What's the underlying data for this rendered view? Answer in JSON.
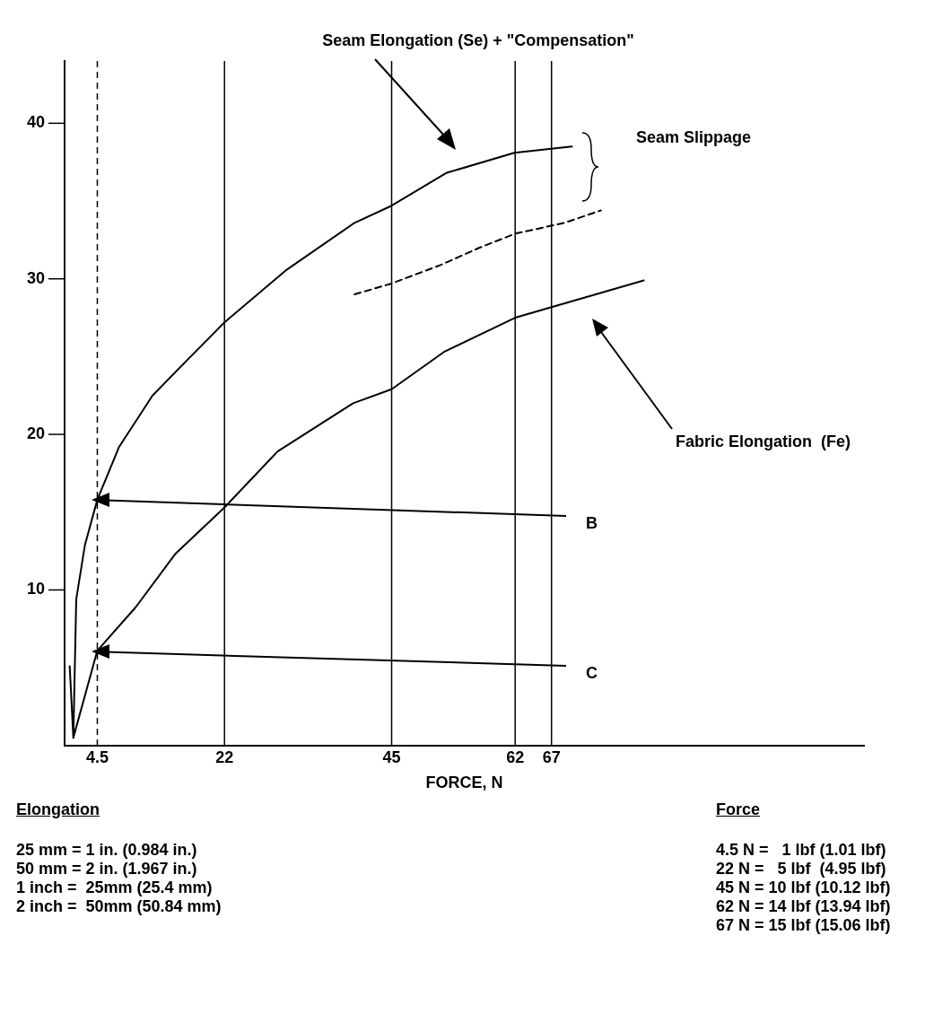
{
  "chart_data": {
    "type": "line",
    "xlabel": "FORCE, N",
    "xlim": [
      0,
      110
    ],
    "xticks": [
      4.5,
      22,
      45,
      62,
      67
    ],
    "ylim": [
      0,
      44
    ],
    "yticks": [
      10,
      20,
      30,
      40
    ],
    "grid": false,
    "legend": false,
    "marker": "none",
    "series": [
      {
        "color": "#000000",
        "x": [
          0.7,
          1.2,
          1.6,
          2.8,
          4.5,
          7.5,
          12.1,
          16.7,
          22,
          30.6,
          39.9,
          45,
          52.5,
          61.9,
          69.8
        ],
        "values": [
          5.1,
          0.5,
          9.4,
          12.9,
          15.8,
          19.2,
          22.5,
          24.7,
          27.2,
          30.6,
          33.6,
          34.7,
          36.8,
          38.1,
          38.5
        ]
      },
      {
        "color": "#000000",
        "x": [
          1.2,
          4.5,
          9.8,
          15.2,
          22,
          29.3,
          39.7,
          45,
          52.2,
          57.1,
          62,
          73.1,
          79.7
        ],
        "values": [
          0.5,
          6.1,
          8.9,
          12.3,
          15.3,
          18.9,
          22.0,
          22.9,
          25.3,
          26.4,
          27.5,
          29.0,
          29.9
        ]
      },
      {
        "color": "#000000",
        "line_style": "dashed",
        "x": [
          39.9,
          45,
          51.8,
          57.1,
          62,
          68.8,
          73.8
        ],
        "values": [
          29.0,
          29.7,
          30.9,
          32.0,
          32.9,
          33.6,
          34.4
        ]
      }
    ],
    "ref_lines": [
      {
        "axis": "x",
        "value": 4.5,
        "line_style": "dashed"
      },
      {
        "axis": "x",
        "value": 22
      },
      {
        "axis": "x",
        "value": 45
      },
      {
        "axis": "x",
        "value": 62
      },
      {
        "axis": "x",
        "value": 67
      }
    ],
    "annotations": [
      "Seam Elongation (Se) + \"Compensation\"",
      "Seam Slippage",
      "Fabric Elongation  (Fe)",
      "B",
      "C",
      "Elongation",
      "25 mm = 1 in. (0.984 in.)",
      "50 mm = 2 in. (1.967 in.)",
      "1 inch =  25mm (25.4 mm)",
      "2 inch =  50mm (50.84 mm)",
      "Force",
      "4.5 N =   1 lbf (1.01 lbf)",
      "22 N =   5 lbf  (4.95 lbf)",
      "45 N = 10 lbf (10.12 lbf)",
      "62 N = 14 lbf (13.94 lbf)",
      "67 N = 15 lbf (15.06 lbf)"
    ]
  }
}
